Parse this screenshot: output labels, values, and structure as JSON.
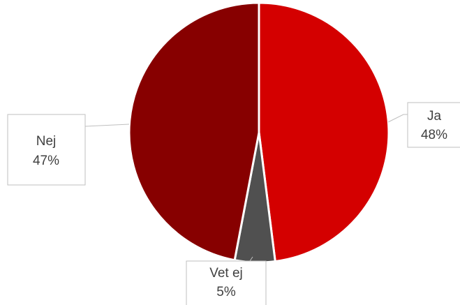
{
  "chart_data": {
    "type": "pie",
    "title": "",
    "slices": [
      {
        "label": "Ja",
        "value": 48,
        "value_label": "48%",
        "color": "#d40000"
      },
      {
        "label": "Vet ej",
        "value": 5,
        "value_label": "5%",
        "color": "#505050"
      },
      {
        "label": "Nej",
        "value": 47,
        "value_label": "47%",
        "color": "#870000"
      }
    ],
    "start_angle_deg": 0,
    "direction": "clockwise",
    "legend": "none",
    "data_labels": "callouts"
  }
}
